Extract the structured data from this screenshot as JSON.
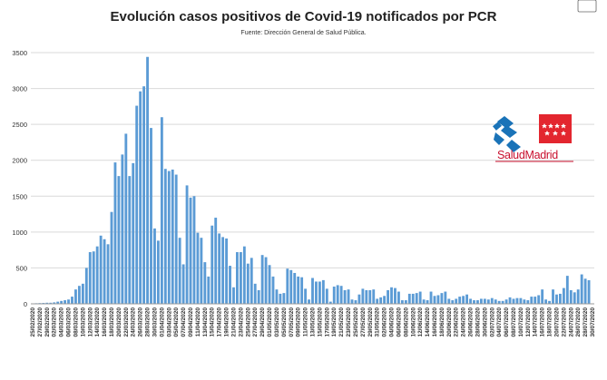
{
  "chart_data": {
    "type": "bar",
    "title": "Evolución casos positivos de Covid-19 notificados por PCR",
    "subtitle": "Fuente: Dirección General de Salud Pública.",
    "xlabel": "",
    "ylabel": "",
    "ylim": [
      0,
      3500
    ],
    "yticks": [
      0,
      500,
      1000,
      1500,
      2000,
      2500,
      3000,
      3500
    ],
    "grid": true,
    "bar_color": "#5b9bd5",
    "start_date": "2020-02-25",
    "end_date": "2020-07-30",
    "xtick_labels": [
      "25/02/2020",
      "27/02/2020",
      "29/02/2020",
      "02/03/2020",
      "04/03/2020",
      "06/03/2020",
      "08/03/2020",
      "10/03/2020",
      "12/03/2020",
      "14/03/2020",
      "16/03/2020",
      "18/03/2020",
      "20/03/2020",
      "22/03/2020",
      "24/03/2020",
      "26/03/2020",
      "28/03/2020",
      "30/03/2020",
      "01/04/2020",
      "03/04/2020",
      "05/04/2020",
      "07/04/2020",
      "09/04/2020",
      "11/04/2020",
      "13/04/2020",
      "15/04/2020",
      "17/04/2020",
      "19/04/2020",
      "21/04/2020",
      "23/04/2020",
      "25/04/2020",
      "27/04/2020",
      "29/04/2020",
      "01/05/2020",
      "03/05/2020",
      "05/05/2020",
      "07/05/2020",
      "09/05/2020",
      "11/05/2020",
      "13/05/2020",
      "15/05/2020",
      "17/05/2020",
      "19/05/2020",
      "21/05/2020",
      "23/05/2020",
      "25/05/2020",
      "27/05/2020",
      "29/05/2020",
      "31/05/2020",
      "02/06/2020",
      "04/06/2020",
      "06/06/2020",
      "08/06/2020",
      "10/06/2020",
      "12/06/2020",
      "14/06/2020",
      "16/06/2020",
      "18/06/2020",
      "20/06/2020",
      "22/06/2020",
      "24/06/2020",
      "26/06/2020",
      "28/06/2020",
      "30/06/2020",
      "02/07/2020",
      "04/07/2020",
      "06/07/2020",
      "08/07/2020",
      "10/07/2020",
      "12/07/2020",
      "14/07/2020",
      "16/07/2020",
      "18/07/2020",
      "20/07/2020",
      "22/07/2020",
      "24/07/2020",
      "26/07/2020",
      "28/07/2020",
      "30/07/2020"
    ],
    "values": [
      5,
      8,
      10,
      12,
      15,
      15,
      20,
      30,
      40,
      50,
      60,
      100,
      200,
      250,
      280,
      500,
      720,
      730,
      800,
      950,
      900,
      830,
      1280,
      1970,
      1780,
      2080,
      2370,
      1780,
      1960,
      2760,
      2960,
      3030,
      3440,
      2450,
      1050,
      880,
      2600,
      1880,
      1850,
      1870,
      1800,
      920,
      550,
      1650,
      1480,
      1500,
      990,
      920,
      580,
      380,
      1090,
      1200,
      980,
      930,
      910,
      530,
      230,
      720,
      720,
      800,
      560,
      640,
      280,
      190,
      680,
      650,
      540,
      380,
      200,
      140,
      150,
      490,
      470,
      430,
      380,
      370,
      210,
      60,
      360,
      310,
      310,
      330,
      210,
      30,
      240,
      260,
      250,
      190,
      200,
      60,
      50,
      130,
      210,
      190,
      190,
      200,
      70,
      90,
      110,
      190,
      230,
      220,
      170,
      50,
      50,
      140,
      140,
      150,
      170,
      60,
      50,
      170,
      110,
      120,
      150,
      170,
      70,
      50,
      70,
      100,
      110,
      130,
      70,
      50,
      50,
      70,
      70,
      60,
      80,
      60,
      40,
      40,
      60,
      90,
      70,
      80,
      80,
      60,
      50,
      100,
      100,
      120,
      200,
      60,
      40,
      200,
      130,
      140,
      220,
      390,
      190,
      160,
      200,
      410,
      350,
      329
    ],
    "annotation": {
      "label": "329",
      "date": "2020-07-30"
    },
    "logo_text": "SaludMadrid"
  }
}
